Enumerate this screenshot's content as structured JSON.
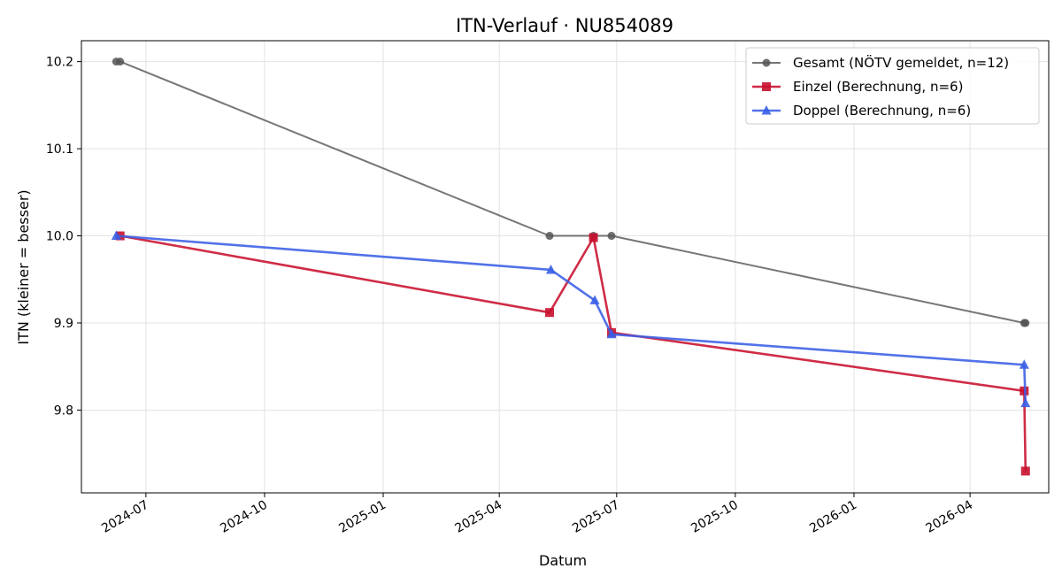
{
  "chart_data": {
    "type": "line",
    "title": "ITN-Verlauf · NU854089",
    "xlabel": "Datum",
    "ylabel": "ITN  (kleiner = besser)",
    "x_ticks": [
      "2024-07",
      "2024-10",
      "2025-01",
      "2025-04",
      "2025-07",
      "2025-10",
      "2026-01",
      "2026-04"
    ],
    "y_ticks": [
      "9.8",
      "9.9",
      "10.0",
      "10.1",
      "10.2"
    ],
    "x_range": [
      "2024-05-12",
      "2026-06-01"
    ],
    "y_range": [
      9.705,
      10.224
    ],
    "grid": true,
    "legend_position": "top-right",
    "series": [
      {
        "name": "Gesamt (NÖTV gemeldet, n=12)",
        "color": "#555555",
        "marker": "circle",
        "points": [
          {
            "x": "2024-06-08",
            "y": 10.2
          },
          {
            "x": "2024-06-11",
            "y": 10.2
          },
          {
            "x": "2025-05-10",
            "y": 10.0
          },
          {
            "x": "2025-06-13",
            "y": 10.0
          },
          {
            "x": "2025-06-27",
            "y": 10.0
          },
          {
            "x": "2026-05-13",
            "y": 9.9
          },
          {
            "x": "2026-05-14",
            "y": 9.9
          }
        ]
      },
      {
        "name": "Einzel (Berechnung, n=6)",
        "color": "#c8102e",
        "marker": "square",
        "points": [
          {
            "x": "2024-06-11",
            "y": 10.0
          },
          {
            "x": "2025-05-10",
            "y": 9.912
          },
          {
            "x": "2025-06-13",
            "y": 9.998
          },
          {
            "x": "2025-06-27",
            "y": 9.889
          },
          {
            "x": "2026-05-13",
            "y": 9.822
          },
          {
            "x": "2026-05-14",
            "y": 9.73
          }
        ]
      },
      {
        "name": "Doppel (Berechnung, n=6)",
        "color": "#3a5fe5",
        "marker": "triangle",
        "points": [
          {
            "x": "2024-06-08",
            "y": 10.0
          },
          {
            "x": "2025-05-11",
            "y": 9.961
          },
          {
            "x": "2025-06-14",
            "y": 9.926
          },
          {
            "x": "2025-06-27",
            "y": 9.887
          },
          {
            "x": "2026-05-13",
            "y": 9.852
          },
          {
            "x": "2026-05-14",
            "y": 9.808
          }
        ]
      }
    ]
  }
}
